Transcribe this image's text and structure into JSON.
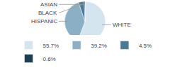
{
  "chart_data": {
    "type": "pie",
    "categories": [
      "WHITE",
      "HISPANIC",
      "BLACK",
      "ASIAN"
    ],
    "values": [
      55.7,
      39.2,
      4.5,
      0.6
    ],
    "value_labels": [
      "55.7%",
      "39.2%",
      "4.5%",
      "0.6%"
    ],
    "colors": [
      "#d4e5f0",
      "#8bafc5",
      "#4a7a97",
      "#1d3f55"
    ],
    "legend": "bottom"
  }
}
